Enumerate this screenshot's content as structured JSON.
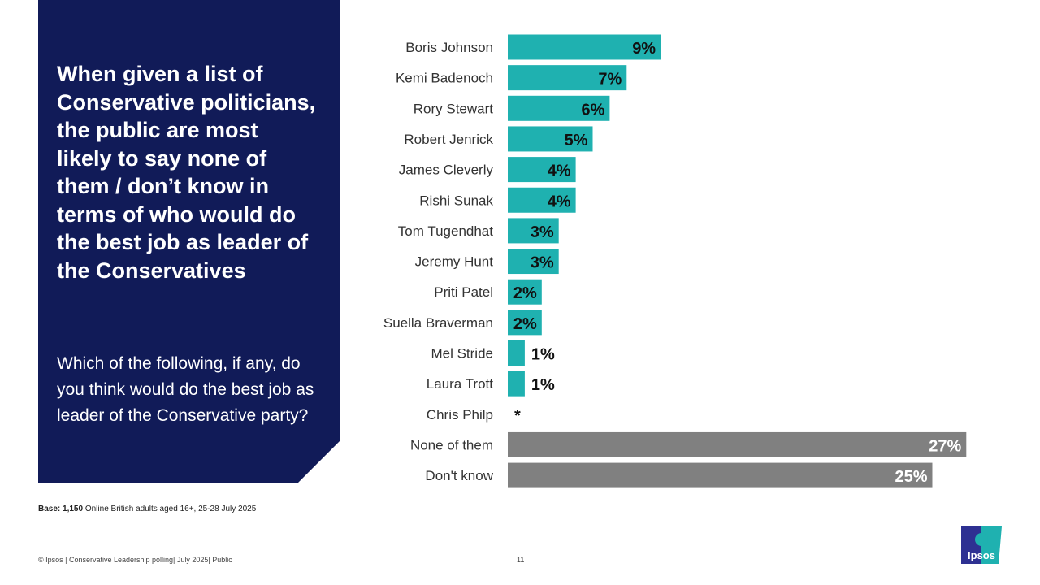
{
  "panel": {
    "title": "When given a list of Conservative politicians, the public are most likely to say none of them / don’t know in terms of who would do the best job as leader of the Conservatives",
    "question": "Which of the following, if any, do you think would do the best job as leader of the Conservative party?"
  },
  "chart_data": {
    "type": "bar",
    "orientation": "horizontal",
    "categories": [
      "Boris Johnson",
      "Kemi Badenoch",
      "Rory Stewart",
      "Robert Jenrick",
      "James Cleverly",
      "Rishi Sunak",
      "Tom Tugendhat",
      "Jeremy Hunt",
      "Priti Patel",
      "Suella Braverman",
      "Mel Stride",
      "Laura Trott",
      "Chris Philp",
      "None of them",
      "Don't know"
    ],
    "values": [
      9,
      7,
      6,
      5,
      4,
      4,
      3,
      3,
      2,
      2,
      1,
      1,
      0,
      27,
      25
    ],
    "labels": [
      "9%",
      "7%",
      "6%",
      "5%",
      "4%",
      "4%",
      "3%",
      "3%",
      "2%",
      "2%",
      "1%",
      "1%",
      "*",
      "27%",
      "25%"
    ],
    "colors": [
      "#1fb1b0",
      "#1fb1b0",
      "#1fb1b0",
      "#1fb1b0",
      "#1fb1b0",
      "#1fb1b0",
      "#1fb1b0",
      "#1fb1b0",
      "#1fb1b0",
      "#1fb1b0",
      "#1fb1b0",
      "#1fb1b0",
      "#1fb1b0",
      "#808080",
      "#808080"
    ],
    "grid": false
  },
  "base": {
    "label": "Base:",
    "count": "1,150",
    "text": "Online British adults aged 16+,  25-28 July 2025"
  },
  "footer": "© Ipsos | Conservative Leadership polling| July 2025| Public",
  "page_number": "11",
  "logo": "Ipsos"
}
